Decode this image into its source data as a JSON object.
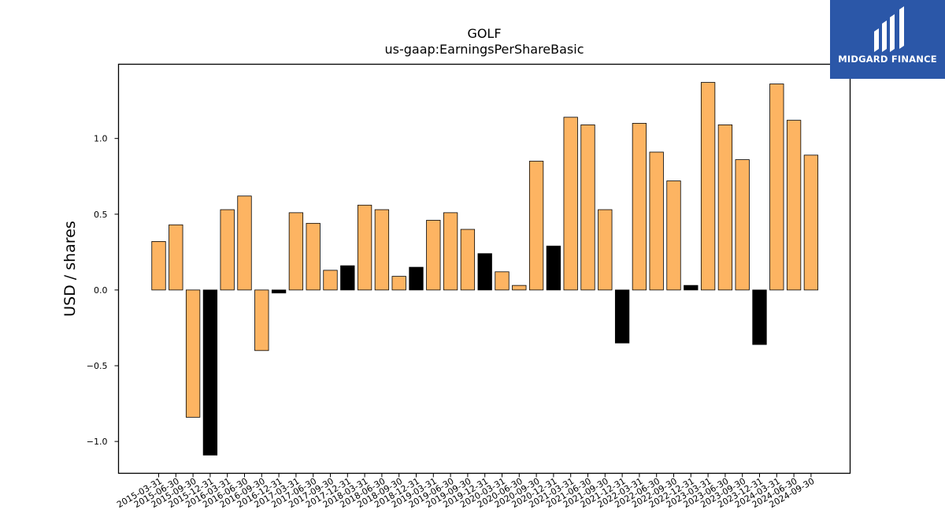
{
  "brand": {
    "name": "MIDGARD FINANCE",
    "background": "#2b57a8",
    "text_color": "#ffffff"
  },
  "chart_data": {
    "type": "bar",
    "title": "GOLF",
    "subtitle": "us-gaap:EarningsPerShareBasic",
    "xlabel": "",
    "ylabel": "USD / shares",
    "ylim": [
      -1.21,
      1.49
    ],
    "yticks": [
      -1.0,
      -0.5,
      0.0,
      0.5,
      1.0
    ],
    "ytick_labels": [
      "−1.0",
      "−0.5",
      "0.0",
      "0.5",
      "1.0"
    ],
    "grid": false,
    "colors": {
      "reported": "#fdb462",
      "derived": "#000000",
      "edge": "#000000"
    },
    "categories": [
      "2015-03-31",
      "2015-06-30",
      "2015-09-30",
      "2015-12-31",
      "2016-03-31",
      "2016-06-30",
      "2016-09-30",
      "2016-12-31",
      "2017-03-31",
      "2017-06-30",
      "2017-09-30",
      "2017-12-31",
      "2018-03-31",
      "2018-06-30",
      "2018-09-30",
      "2018-12-31",
      "2019-03-31",
      "2019-06-30",
      "2019-09-30",
      "2019-12-31",
      "2020-03-31",
      "2020-06-30",
      "2020-09-30",
      "2020-12-31",
      "2021-03-31",
      "2021-06-30",
      "2021-09-30",
      "2021-12-31",
      "2022-03-31",
      "2022-06-30",
      "2022-09-30",
      "2022-12-31",
      "2023-03-31",
      "2023-06-30",
      "2023-09-30",
      "2023-12-31",
      "2024-03-31",
      "2024-06-30",
      "2024-09-30"
    ],
    "values": [
      0.32,
      0.43,
      -0.84,
      -1.09,
      0.53,
      0.62,
      -0.4,
      -0.02,
      0.51,
      0.44,
      0.13,
      0.16,
      0.56,
      0.53,
      0.09,
      0.15,
      0.46,
      0.51,
      0.4,
      0.24,
      0.12,
      0.03,
      0.85,
      0.29,
      1.14,
      1.09,
      0.53,
      -0.35,
      1.1,
      0.91,
      0.72,
      0.03,
      1.37,
      1.09,
      0.86,
      -0.36,
      1.36,
      1.12,
      0.89
    ],
    "bar_colors": [
      "#fdb462",
      "#fdb462",
      "#fdb462",
      "#000000",
      "#fdb462",
      "#fdb462",
      "#fdb462",
      "#000000",
      "#fdb462",
      "#fdb462",
      "#fdb462",
      "#000000",
      "#fdb462",
      "#fdb462",
      "#fdb462",
      "#000000",
      "#fdb462",
      "#fdb462",
      "#fdb462",
      "#000000",
      "#fdb462",
      "#fdb462",
      "#fdb462",
      "#000000",
      "#fdb462",
      "#fdb462",
      "#fdb462",
      "#000000",
      "#fdb462",
      "#fdb462",
      "#fdb462",
      "#000000",
      "#fdb462",
      "#fdb462",
      "#fdb462",
      "#000000",
      "#fdb462",
      "#fdb462",
      "#fdb462"
    ]
  }
}
